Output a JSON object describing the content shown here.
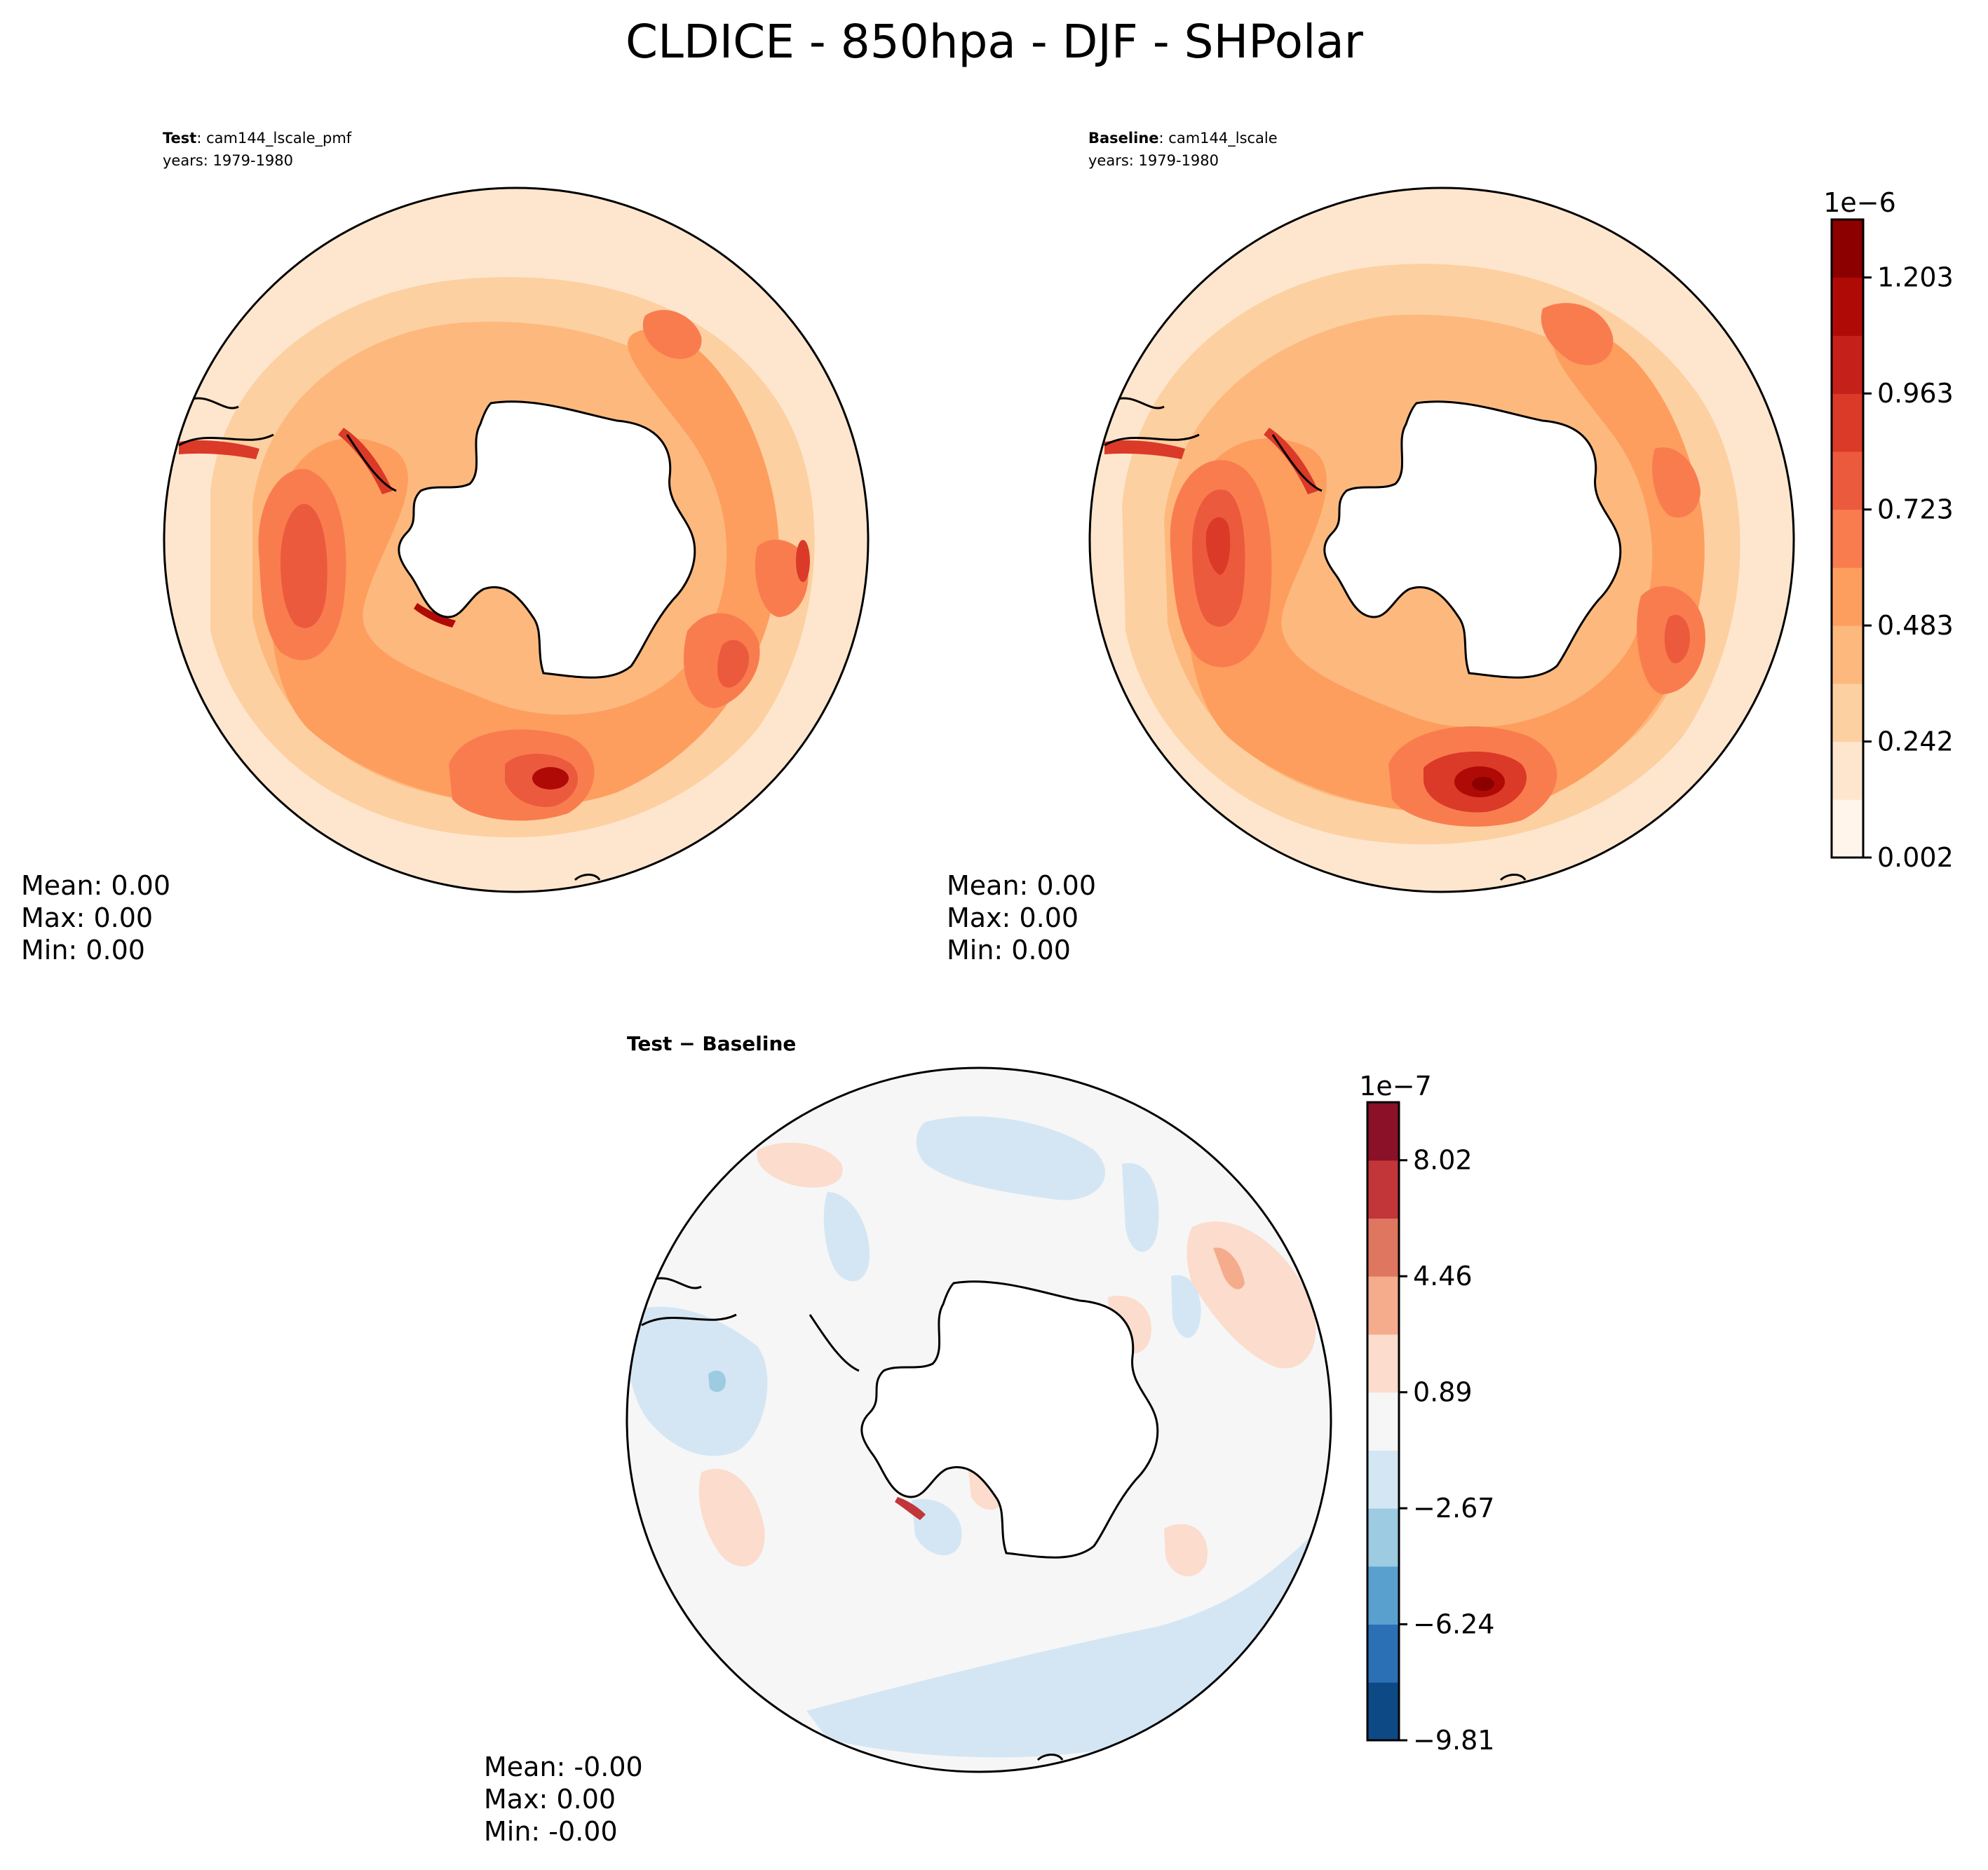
{
  "figure": {
    "title": "CLDICE - 850hpa - DJF - SHPolar"
  },
  "chart_data": [
    {
      "type": "heatmap",
      "projection": "south-polar-stereographic",
      "panel": "test",
      "label_bold": "Test",
      "label_sep": ": ",
      "label_rest": "cam144_lscale_pmf",
      "years": "years: 1979-1980",
      "stats": [
        "Mean:  0.00",
        "Max:  0.00",
        "Min:  0.00"
      ]
    },
    {
      "type": "heatmap",
      "projection": "south-polar-stereographic",
      "panel": "baseline",
      "label_bold": "Baseline",
      "label_sep": ": ",
      "label_rest": "cam144_lscale",
      "years": "years: 1979-1980",
      "stats": [
        "Mean:  0.00",
        "Max:  0.00",
        "Min:  0.00"
      ],
      "colorbar": {
        "exponent": "1e−6",
        "ticks": [
          "0.002",
          "0.242",
          "0.483",
          "0.723",
          "0.963",
          "1.203"
        ],
        "levels": 11,
        "colors": [
          "#fff5eb",
          "#fee6ce",
          "#fdd0a2",
          "#fdb97d",
          "#fd9e5f",
          "#f97c4f",
          "#ec5a3e",
          "#da3a27",
          "#c6201a",
          "#b00a07",
          "#8c0000"
        ]
      }
    },
    {
      "type": "heatmap",
      "projection": "south-polar-stereographic",
      "panel": "difference",
      "label_a": "Test",
      "label_op": " − ",
      "label_b": "Baseline",
      "stats": [
        "Mean: -0.00",
        "Max:  0.00",
        "Min: -0.00"
      ],
      "colorbar": {
        "exponent": "1e−7",
        "ticks": [
          "−9.81",
          "−6.24",
          "−2.67",
          "0.89",
          "4.46",
          "8.02"
        ],
        "levels": 11,
        "colors": [
          "#0d4a85",
          "#2b6fb4",
          "#5aa0cf",
          "#9ccbe2",
          "#d4e6f3",
          "#f6f6f6",
          "#fbdccd",
          "#f4ac8d",
          "#df7660",
          "#c23538",
          "#8a1127"
        ]
      }
    }
  ]
}
